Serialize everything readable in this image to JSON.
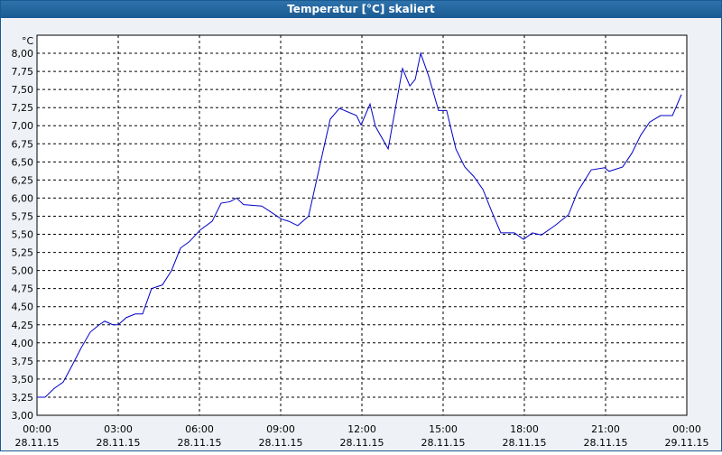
{
  "chart_data": {
    "type": "line",
    "title": "Temperatur [°C] skaliert",
    "y_unit": "°C",
    "grid": true,
    "xlim": [
      0,
      24
    ],
    "ylim": [
      3,
      8.25
    ],
    "xticks": [
      {
        "value": 0,
        "label": "00:00",
        "date": "28.11.15"
      },
      {
        "value": 3,
        "label": "03:00",
        "date": "28.11.15"
      },
      {
        "value": 6,
        "label": "06:00",
        "date": "28.11.15"
      },
      {
        "value": 9,
        "label": "09:00",
        "date": "28.11.15"
      },
      {
        "value": 12,
        "label": "12:00",
        "date": "28.11.15"
      },
      {
        "value": 15,
        "label": "15:00",
        "date": "28.11.15"
      },
      {
        "value": 18,
        "label": "18:00",
        "date": "28.11.15"
      },
      {
        "value": 21,
        "label": "21:00",
        "date": "28.11.15"
      },
      {
        "value": 24,
        "label": "00:00",
        "date": "29.11.15"
      }
    ],
    "yticks": [
      {
        "value": 3,
        "label": "3,00"
      },
      {
        "value": 3.25,
        "label": "3,25"
      },
      {
        "value": 3.5,
        "label": "3,50"
      },
      {
        "value": 3.75,
        "label": "3,75"
      },
      {
        "value": 4,
        "label": "4,00"
      },
      {
        "value": 4.25,
        "label": "4,25"
      },
      {
        "value": 4.5,
        "label": "4,50"
      },
      {
        "value": 4.75,
        "label": "4,75"
      },
      {
        "value": 5,
        "label": "5,00"
      },
      {
        "value": 5.25,
        "label": "5,25"
      },
      {
        "value": 5.5,
        "label": "5,50"
      },
      {
        "value": 5.75,
        "label": "5,75"
      },
      {
        "value": 6,
        "label": "6,00"
      },
      {
        "value": 6.25,
        "label": "6,25"
      },
      {
        "value": 6.5,
        "label": "6,50"
      },
      {
        "value": 6.75,
        "label": "6,75"
      },
      {
        "value": 7,
        "label": "7,00"
      },
      {
        "value": 7.25,
        "label": "7,25"
      },
      {
        "value": 7.5,
        "label": "7,50"
      },
      {
        "value": 7.75,
        "label": "7,75"
      },
      {
        "value": 8,
        "label": "8,00"
      }
    ],
    "x": [
      0,
      0.3,
      0.63,
      0.97,
      1.3,
      1.63,
      1.97,
      2.3,
      2.5,
      2.8,
      3.0,
      3.3,
      3.63,
      3.9,
      4.23,
      4.63,
      4.97,
      5.3,
      5.63,
      6.03,
      6.47,
      6.8,
      7.13,
      7.37,
      7.63,
      8.3,
      8.63,
      9.03,
      9.3,
      9.63,
      10.03,
      10.47,
      10.83,
      11.17,
      11.8,
      11.97,
      12.3,
      12.5,
      12.97,
      13.5,
      13.77,
      13.97,
      14.17,
      14.47,
      14.83,
      15.13,
      15.47,
      15.8,
      16.13,
      16.47,
      16.8,
      17.13,
      17.63,
      17.97,
      18.3,
      18.63,
      19.13,
      19.63,
      19.97,
      20.47,
      20.97,
      21.13,
      21.63,
      21.97,
      22.3,
      22.63,
      23.03,
      23.47,
      23.8
    ],
    "series": [
      {
        "color": "#0000c8",
        "values": [
          3.25,
          3.25,
          3.37,
          3.46,
          3.69,
          3.93,
          4.15,
          4.25,
          4.3,
          4.25,
          4.25,
          4.35,
          4.4,
          4.4,
          4.75,
          4.8,
          5.0,
          5.31,
          5.4,
          5.56,
          5.68,
          5.93,
          5.95,
          6.0,
          5.91,
          5.89,
          5.81,
          5.71,
          5.68,
          5.62,
          5.75,
          6.49,
          7.09,
          7.24,
          7.14,
          7.01,
          7.3,
          6.99,
          6.68,
          7.79,
          7.55,
          7.64,
          8.0,
          7.68,
          7.21,
          7.21,
          6.68,
          6.43,
          6.3,
          6.12,
          5.81,
          5.52,
          5.52,
          5.43,
          5.52,
          5.49,
          5.62,
          5.77,
          6.09,
          6.39,
          6.42,
          6.37,
          6.43,
          6.62,
          6.87,
          7.05,
          7.14,
          7.14,
          7.43
        ]
      }
    ]
  }
}
